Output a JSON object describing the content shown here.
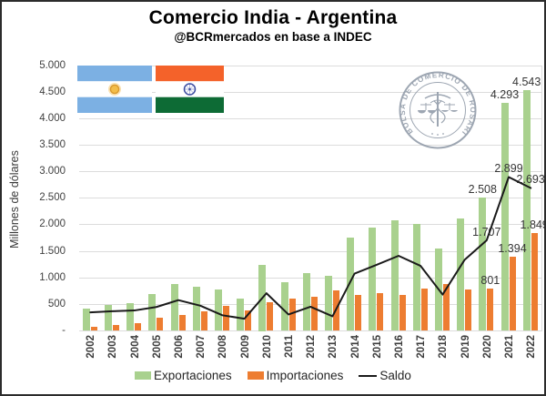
{
  "header": {
    "title": "Comercio India - Argentina",
    "subtitle": "@BCRmercados en base a INDEC"
  },
  "logo": {
    "ring_text": "BOLSA DE COMERCIO DE ROSARIO"
  },
  "colors": {
    "exports_green": "#a9d18e",
    "imports_orange": "#ed7d31",
    "saldo_black": "#1a1a1a",
    "gridline_gray": "#dcdcdc",
    "argentina_blue": "#7cb0e3",
    "argentina_sun_gold": "#f0b53c",
    "india_saffron": "#f4622a",
    "india_green": "#0d6b35",
    "india_navy": "#3b4ba0",
    "logo_gray": "#8d97a5"
  },
  "chart_data": {
    "type": "bar",
    "title": "Comercio India - Argentina",
    "subtitle": "@BCRmercados en base a INDEC",
    "ylabel": "Millones de dólares",
    "xlabel": "",
    "ylim": [
      0,
      5000
    ],
    "ytick_step": 500,
    "ytick_labels": [
      "5.000",
      "4.500",
      "4.000",
      "3.500",
      "3.000",
      "2.500",
      "2.000",
      "1.500",
      "1.000",
      "500",
      "-"
    ],
    "grid": true,
    "legend_position": "bottom",
    "xtick_rotation_deg": 90,
    "categories": [
      "2002",
      "2003",
      "2004",
      "2005",
      "2006",
      "2007",
      "2008",
      "2009",
      "2010",
      "2011",
      "2012",
      "2013",
      "2014",
      "2015",
      "2016",
      "2017",
      "2018",
      "2019",
      "2020",
      "2021",
      "2022"
    ],
    "series": [
      {
        "name": "Exportaciones",
        "type": "bar",
        "color": "#a9d18e",
        "values": [
          420,
          490,
          530,
          700,
          875,
          840,
          775,
          610,
          1250,
          920,
          1090,
          1035,
          1760,
          1950,
          2090,
          2020,
          1560,
          2120,
          2508,
          4293,
          4543
        ]
      },
      {
        "name": "Importaciones",
        "type": "bar",
        "color": "#ed7d31",
        "values": [
          70,
          120,
          145,
          250,
          295,
          365,
          480,
          380,
          540,
          610,
          635,
          760,
          680,
          705,
          675,
          795,
          875,
          780,
          801,
          1394,
          1849
        ]
      },
      {
        "name": "Saldo",
        "type": "line",
        "color": "#1a1a1a",
        "values": [
          350,
          370,
          385,
          450,
          580,
          475,
          295,
          230,
          710,
          310,
          455,
          275,
          1080,
          1245,
          1415,
          1225,
          685,
          1340,
          1707,
          2899,
          2693
        ]
      }
    ],
    "data_labels": [
      {
        "series": "Exportaciones",
        "year": "2020",
        "text": "2.508"
      },
      {
        "series": "Exportaciones",
        "year": "2021",
        "text": "4.293"
      },
      {
        "series": "Exportaciones",
        "year": "2022",
        "text": "4.543"
      },
      {
        "series": "Importaciones",
        "year": "2020",
        "text": "801"
      },
      {
        "series": "Importaciones",
        "year": "2021",
        "text": "1.394"
      },
      {
        "series": "Importaciones",
        "year": "2022",
        "text": "1.849"
      },
      {
        "series": "Saldo",
        "year": "2020",
        "text": "1.707"
      },
      {
        "series": "Saldo",
        "year": "2021",
        "text": "2.899"
      },
      {
        "series": "Saldo",
        "year": "2022",
        "text": "2.693"
      }
    ]
  }
}
